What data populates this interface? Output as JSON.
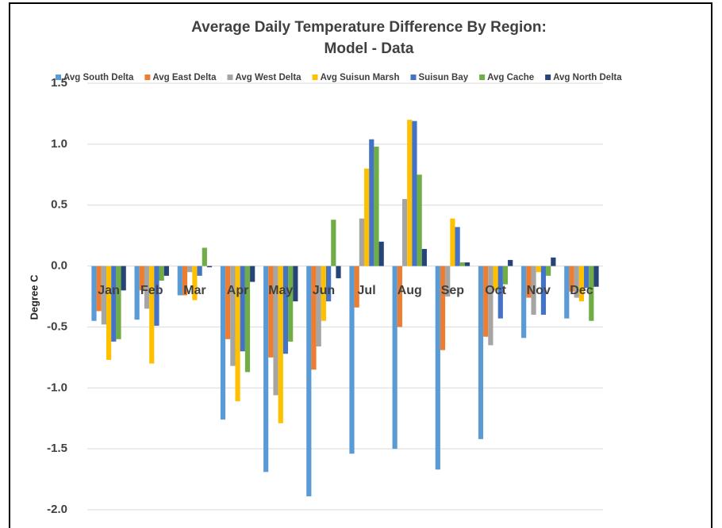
{
  "chart_data": {
    "type": "bar",
    "title": "Average Daily Temperature Difference By Region:",
    "subtitle": "Model - Data",
    "y_label": "Degree C",
    "categories": [
      "Jan",
      "Feb",
      "Mar",
      "Apr",
      "May",
      "Jun",
      "Jul",
      "Aug",
      "Sep",
      "Oct",
      "Nov",
      "Dec"
    ],
    "series": [
      {
        "name": "Avg South Delta",
        "color": "#5b9bd5",
        "values": [
          -0.45,
          -0.44,
          -0.24,
          -1.26,
          -1.69,
          -1.89,
          -1.54,
          -1.5,
          -1.67,
          -1.42,
          -0.59,
          -0.43
        ]
      },
      {
        "name": "Avg East Delta",
        "color": "#ed7d31",
        "values": [
          -0.37,
          -0.2,
          -0.24,
          -0.6,
          -0.75,
          -0.85,
          -0.34,
          -0.5,
          -0.69,
          -0.58,
          -0.26,
          -0.21
        ]
      },
      {
        "name": "Avg West Delta",
        "color": "#a5a5a5",
        "values": [
          -0.48,
          -0.35,
          -0.05,
          -0.82,
          -1.06,
          -0.66,
          0.39,
          0.55,
          -0.25,
          -0.65,
          -0.4,
          -0.26
        ]
      },
      {
        "name": "Avg Suisun Marsh",
        "color": "#ffc000",
        "values": [
          -0.77,
          -0.8,
          -0.28,
          -1.11,
          -1.29,
          -0.45,
          0.8,
          1.2,
          0.39,
          -0.2,
          -0.05,
          -0.29
        ]
      },
      {
        "name": "Suisun Bay",
        "color": "#4472c4",
        "values": [
          -0.62,
          -0.49,
          -0.08,
          -0.7,
          -0.72,
          -0.29,
          1.04,
          1.19,
          0.32,
          -0.43,
          -0.4,
          -0.18
        ]
      },
      {
        "name": "Avg Cache",
        "color": "#70ad47",
        "values": [
          -0.6,
          -0.12,
          0.15,
          -0.87,
          -0.62,
          0.38,
          0.98,
          0.75,
          0.03,
          -0.15,
          -0.08,
          -0.45
        ]
      },
      {
        "name": "Avg North Delta",
        "color": "#264478",
        "values": [
          -0.2,
          -0.08,
          -0.01,
          -0.13,
          -0.29,
          -0.1,
          0.2,
          0.14,
          0.03,
          0.05,
          0.07,
          -0.17
        ]
      }
    ],
    "ylim": [
      -2,
      1.5
    ],
    "yticks": [
      {
        "value": -2,
        "label": "-2.0"
      },
      -1.5,
      {
        "value": -1,
        "label": "-1.0"
      },
      -0.5,
      {
        "value": 0,
        "label": "0.0"
      },
      0.5,
      {
        "value": 1,
        "label": "1.0"
      },
      1.5
    ],
    "grid": true
  }
}
